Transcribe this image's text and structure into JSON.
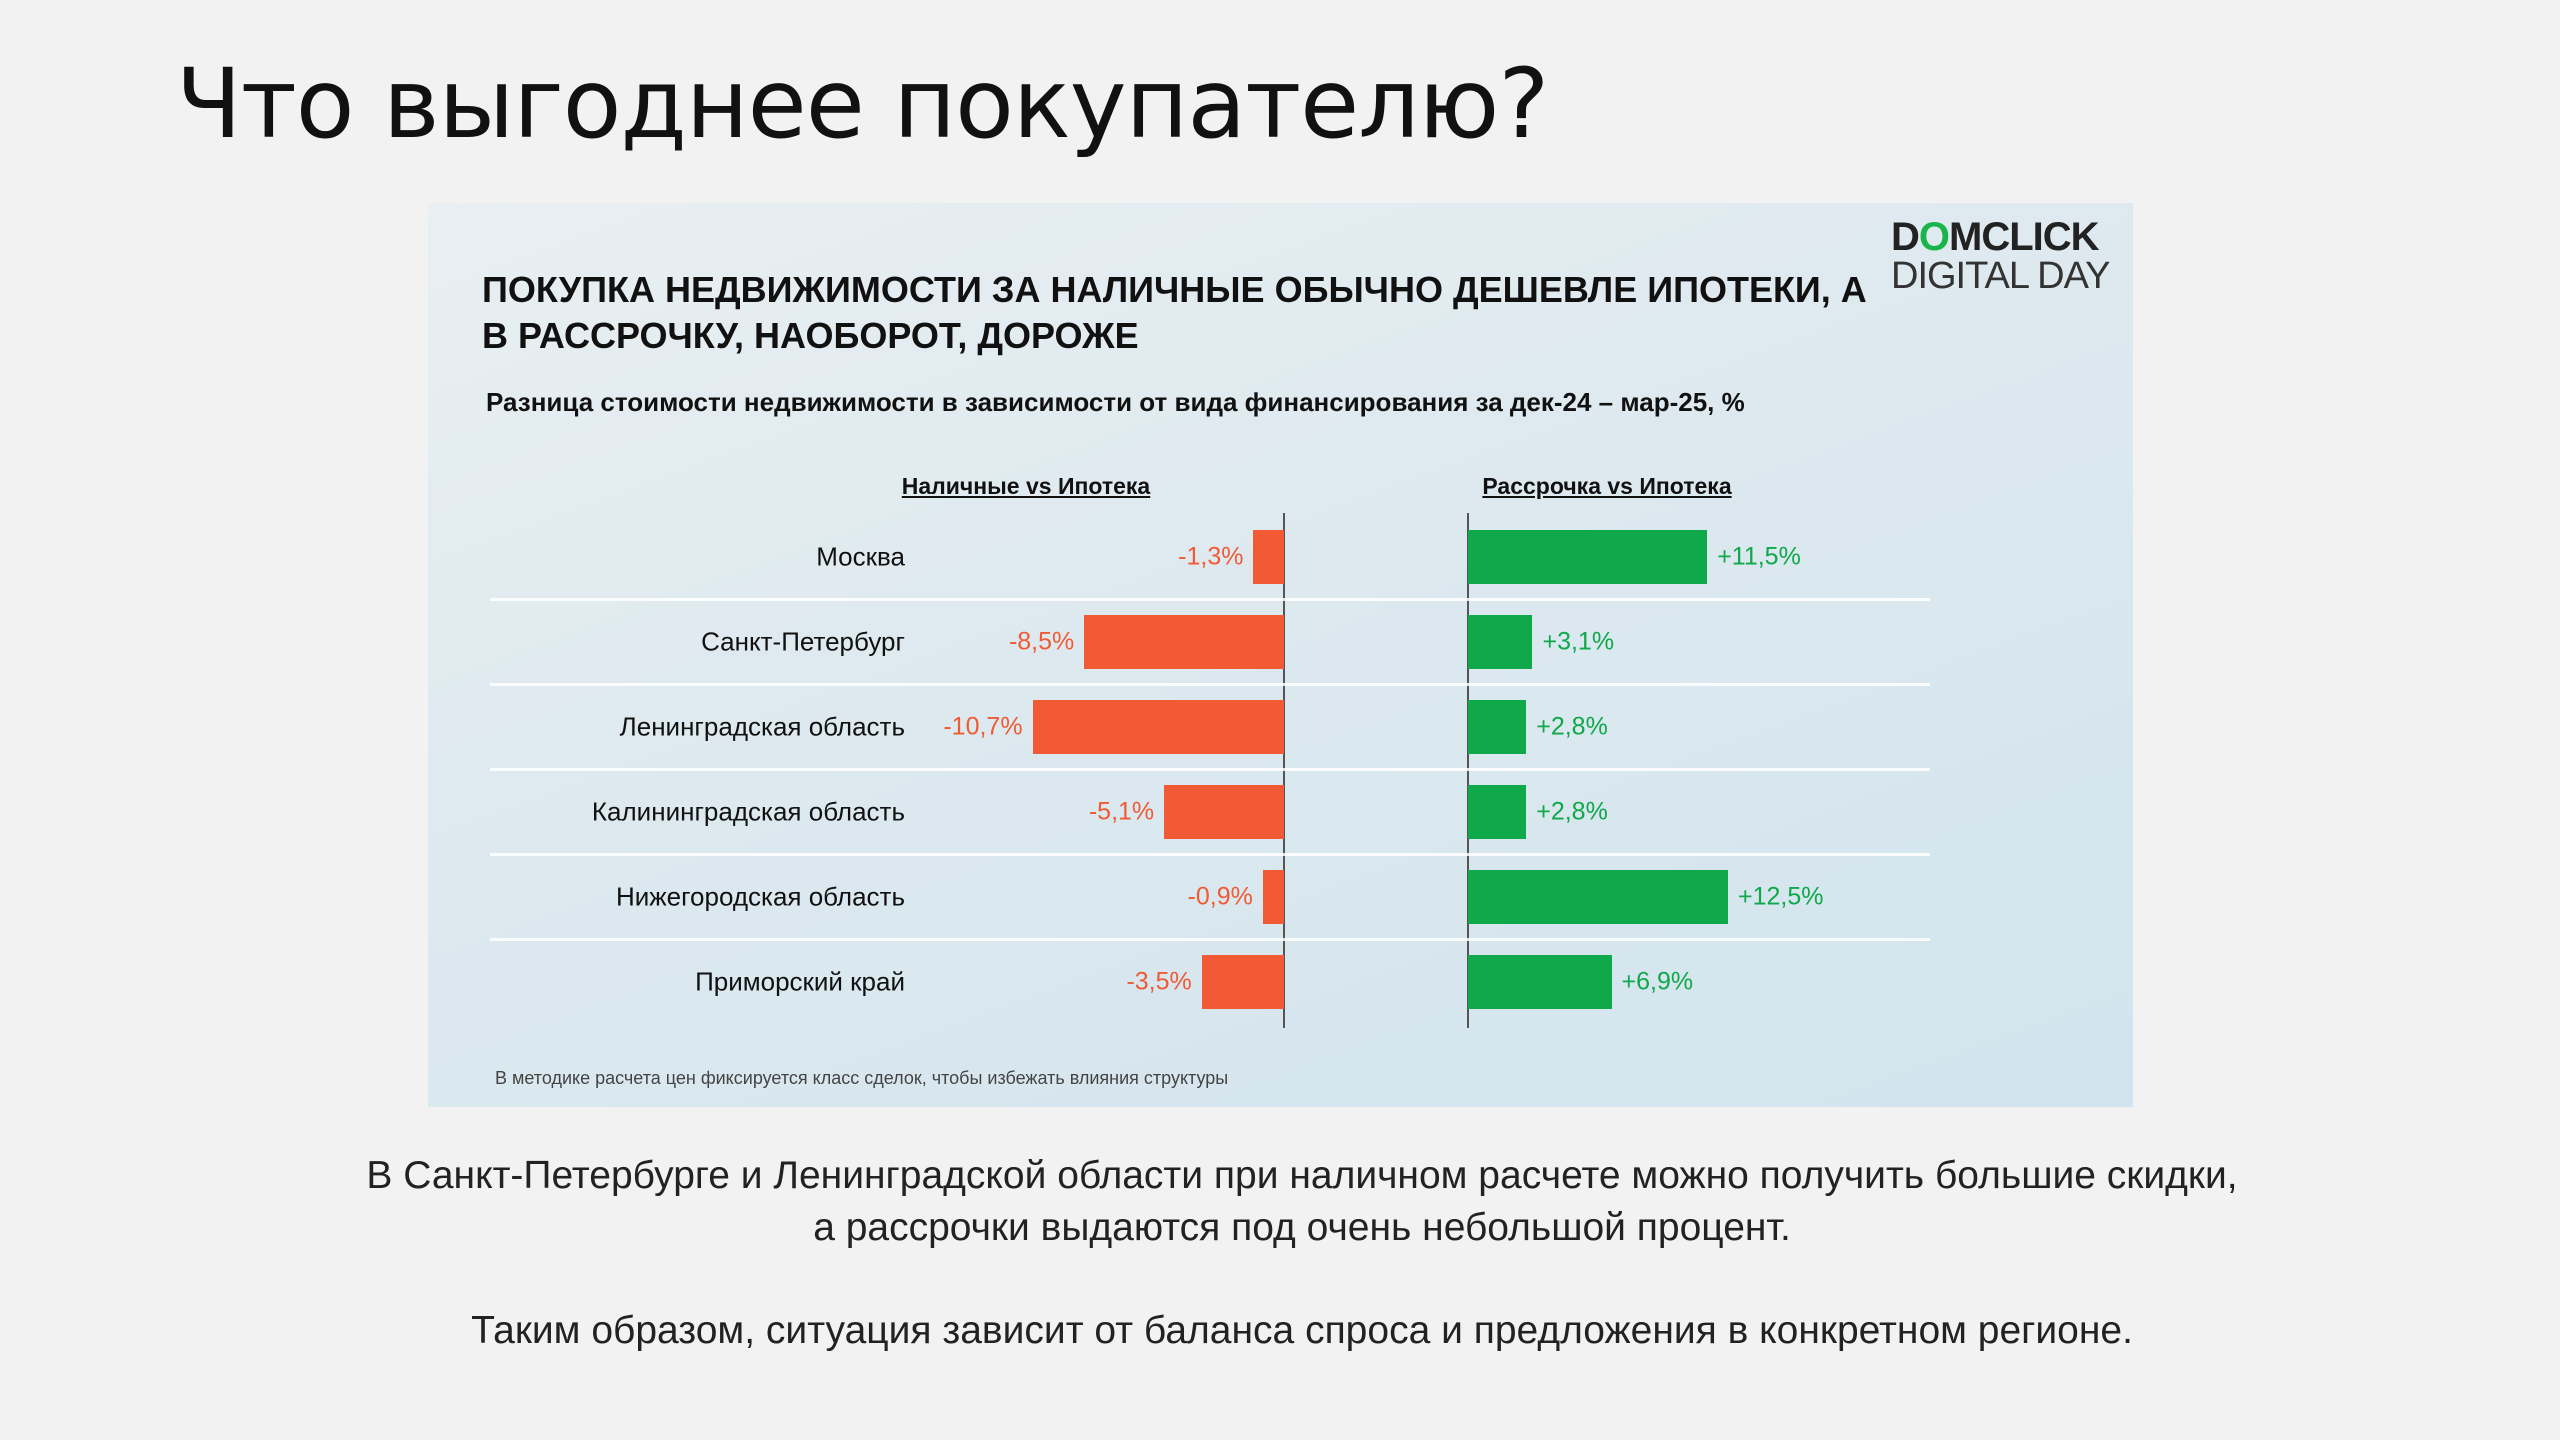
{
  "slide_title": "Что выгоднее покупателю?",
  "logo": {
    "line1_a": "D",
    "line1_o": "O",
    "line1_b": "MCLICK",
    "line2": "DIGITAL DAY"
  },
  "chart_data": {
    "type": "bar",
    "title": "ПОКУПКА НЕДВИЖИМОСТИ ЗА НАЛИЧНЫЕ ОБЫЧНО ДЕШЕВЛЕ ИПОТЕКИ, А В РАССРОЧКУ, НАОБОРОТ, ДОРОЖЕ",
    "subtitle": "Разница стоимости недвижимости в зависимости от вида финансирования за дек-24 – мар-25, %",
    "categories": [
      "Москва",
      "Санкт-Петербург",
      "Ленинградская область",
      "Калининградская область",
      "Нижегородская область",
      "Приморский край"
    ],
    "series": [
      {
        "name": "Наличные vs Ипотека",
        "values": [
          -1.3,
          -8.5,
          -10.7,
          -5.1,
          -0.9,
          -3.5
        ],
        "labels": [
          "-1,3%",
          "-8,5%",
          "-10,7%",
          "-5,1%",
          "-0,9%",
          "-3,5%"
        ],
        "color": "#f15a35"
      },
      {
        "name": "Рассрочка vs Ипотека",
        "values": [
          11.5,
          3.1,
          2.8,
          2.8,
          12.5,
          6.9
        ],
        "labels": [
          "+11,5%",
          "+3,1%",
          "+2,8%",
          "+2,8%",
          "+12,5%",
          "+6,9%"
        ],
        "color": "#0fa84a"
      }
    ],
    "footnote": "В методике расчета цен фиксируется класс сделок, чтобы избежать влияния структуры"
  },
  "body": [
    "В Санкт-Петербурге и Ленинградской области при наличном расчете можно получить большие скидки,",
    "а рассрочки выдаются под очень небольшой процент.",
    "Таким образом, ситуация зависит от баланса спроса и предложения в конкретном регионе."
  ]
}
